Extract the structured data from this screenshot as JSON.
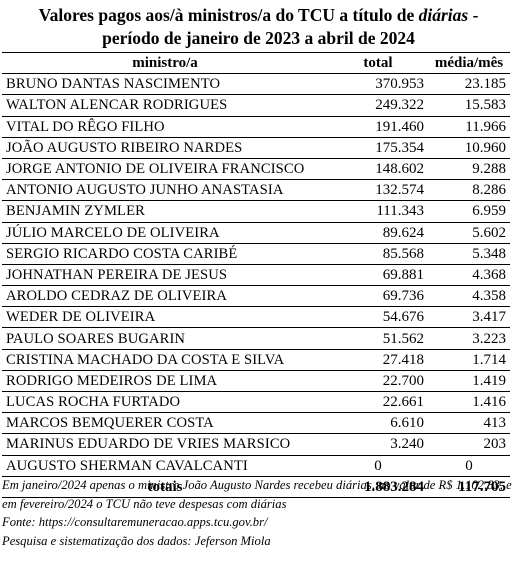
{
  "title": {
    "line1_prefix": "Valores pagos aos/à ministros/a do TCU a título de",
    "line1_italic": "diárias",
    "line1_suffix": " -",
    "line2": "período de janeiro de 2023 a abril de 2024"
  },
  "table": {
    "headers": {
      "name": "ministro/a",
      "total": "total",
      "media": "média/mês"
    },
    "rows": [
      {
        "name": "BRUNO DANTAS NASCIMENTO",
        "total": "370.953",
        "media": "23.185"
      },
      {
        "name": "WALTON ALENCAR RODRIGUES",
        "total": "249.322",
        "media": "15.583"
      },
      {
        "name": "VITAL DO RÊGO FILHO",
        "total": "191.460",
        "media": "11.966"
      },
      {
        "name": "JOÃO AUGUSTO RIBEIRO NARDES",
        "total": "175.354",
        "media": "10.960"
      },
      {
        "name": "JORGE ANTONIO DE OLIVEIRA FRANCISCO",
        "total": "148.602",
        "media": "9.288"
      },
      {
        "name": "ANTONIO AUGUSTO JUNHO ANASTASIA",
        "total": "132.574",
        "media": "8.286"
      },
      {
        "name": "BENJAMIN ZYMLER",
        "total": "111.343",
        "media": "6.959"
      },
      {
        "name": "JÚLIO MARCELO DE OLIVEIRA",
        "total": "89.624",
        "media": "5.602"
      },
      {
        "name": "SERGIO RICARDO COSTA CARIBÉ",
        "total": "85.568",
        "media": "5.348"
      },
      {
        "name": "JOHNATHAN PEREIRA DE JESUS",
        "total": "69.881",
        "media": "4.368"
      },
      {
        "name": "AROLDO CEDRAZ DE OLIVEIRA",
        "total": "69.736",
        "media": "4.358"
      },
      {
        "name": "WEDER DE OLIVEIRA",
        "total": "54.676",
        "media": "3.417"
      },
      {
        "name": "PAULO SOARES BUGARIN",
        "total": "51.562",
        "media": "3.223"
      },
      {
        "name": "CRISTINA MACHADO DA COSTA E SILVA",
        "total": "27.418",
        "media": "1.714"
      },
      {
        "name": "RODRIGO MEDEIROS DE LIMA",
        "total": "22.700",
        "media": "1.419"
      },
      {
        "name": "LUCAS ROCHA FURTADO",
        "total": "22.661",
        "media": "1.416"
      },
      {
        "name": "MARCOS BEMQUERER COSTA",
        "total": "6.610",
        "media": "413"
      },
      {
        "name": "MARINUS EDUARDO DE VRIES MARSICO",
        "total": "3.240",
        "media": "203"
      },
      {
        "name": "AUGUSTO SHERMAN CAVALCANTI",
        "total": "0",
        "media": "0"
      }
    ],
    "totals": {
      "label": "totais",
      "total": "1.883.284",
      "media": "117.705"
    }
  },
  "notes": {
    "note": "Em janeiro/2024 apenas o ministro João Augusto Nardes recebeu diárias, no valor de R$ 1.102,83, e em fevereiro/2024 o TCU não teve despesas com diárias",
    "source": "Fonte: https://consultaremuneracao.apps.tcu.gov.br/",
    "credit": "Pesquisa e sistematização dos dados: Jeferson Miola"
  }
}
